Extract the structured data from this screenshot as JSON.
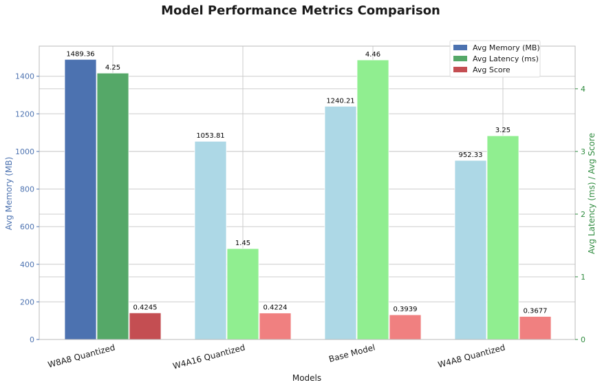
{
  "chart_data": {
    "type": "bar",
    "title": "Model Performance Metrics Comparison",
    "xlabel": "Models",
    "ylabel_left": "Avg Memory (MB)",
    "ylabel_right": "Avg Latency (ms) / Avg Score",
    "categories": [
      "W8A8 Quantized",
      "W4A16 Quantized",
      "Base Model",
      "W4A8 Quantized"
    ],
    "ylim_left": [
      0,
      1560
    ],
    "ylim_right": [
      0,
      4.68
    ],
    "yticks_left": [
      0,
      200,
      400,
      600,
      800,
      1000,
      1200,
      1400
    ],
    "yticks_right": [
      0,
      1,
      2,
      3,
      4
    ],
    "grid": true,
    "legend_position": "top-right",
    "series": [
      {
        "name": "Avg Memory (MB)",
        "axis": "left",
        "values": [
          1489.36,
          1053.81,
          1240.21,
          952.33
        ],
        "labels": [
          "1489.36",
          "1053.81",
          "1240.21",
          "952.33"
        ],
        "colors": [
          "#4c72b0",
          "#add8e6",
          "#add8e6",
          "#add8e6"
        ],
        "legend_color": "#4c72b0"
      },
      {
        "name": "Avg Latency (ms)",
        "axis": "right",
        "values": [
          4.25,
          1.45,
          4.46,
          3.25
        ],
        "labels": [
          "4.25",
          "1.45",
          "4.46",
          "3.25"
        ],
        "colors": [
          "#55a868",
          "#90ee90",
          "#90ee90",
          "#90ee90"
        ],
        "legend_color": "#55a868"
      },
      {
        "name": "Avg Score",
        "axis": "right",
        "values": [
          0.4245,
          0.4224,
          0.3939,
          0.3677
        ],
        "labels": [
          "0.4245",
          "0.4224",
          "0.3939",
          "0.3677"
        ],
        "colors": [
          "#c44e52",
          "#f08080",
          "#f08080",
          "#f08080"
        ],
        "legend_color": "#c44e52"
      }
    ]
  }
}
